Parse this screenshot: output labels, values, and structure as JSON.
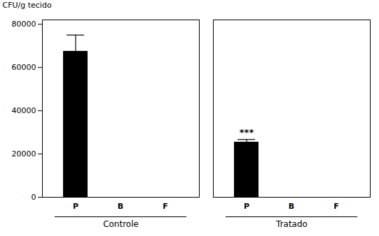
{
  "chart_data": {
    "type": "bar",
    "categories": [
      "P",
      "B",
      "F"
    ],
    "series": [
      {
        "name": "Controle",
        "values": [
          67500,
          0,
          0
        ],
        "errors": [
          7500,
          0,
          0
        ]
      },
      {
        "name": "Tratado",
        "values": [
          25500,
          0,
          0
        ],
        "errors": [
          1200,
          0,
          0
        ]
      }
    ],
    "ylabel": "CFU/g tecido",
    "ylim": [
      0,
      82000
    ],
    "yticks": [
      0,
      20000,
      40000,
      60000,
      80000
    ],
    "annotations": [
      {
        "text": "***",
        "series": "Tratado",
        "category": "P"
      }
    ],
    "grid": false
  }
}
